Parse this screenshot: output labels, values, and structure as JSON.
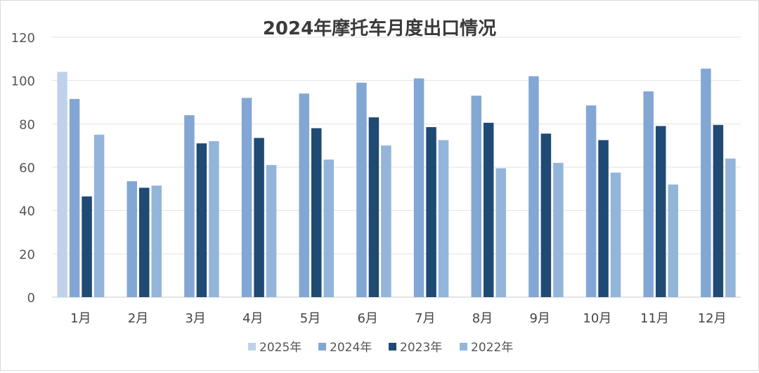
{
  "chart_data": {
    "type": "bar",
    "title": "2024年摩托车月度出口情况",
    "xlabel": "",
    "ylabel": "",
    "ylim": [
      0,
      120
    ],
    "yticks": [
      0,
      20,
      40,
      60,
      80,
      100,
      120
    ],
    "grid": true,
    "legend_position": "bottom",
    "categories": [
      "1月",
      "2月",
      "3月",
      "4月",
      "5月",
      "6月",
      "7月",
      "8月",
      "9月",
      "10月",
      "11月",
      "12月"
    ],
    "series": [
      {
        "name": "2025年",
        "color": "#c0d2ea",
        "values": [
          104,
          null,
          null,
          null,
          null,
          null,
          null,
          null,
          null,
          null,
          null,
          null
        ]
      },
      {
        "name": "2024年",
        "color": "#83a7d4",
        "values": [
          91.5,
          53.5,
          84,
          92,
          94,
          99,
          101,
          93,
          102,
          88.5,
          95,
          105.5
        ]
      },
      {
        "name": "2023年",
        "color": "#1f4a74",
        "values": [
          46.5,
          50.5,
          71,
          73.5,
          78,
          83,
          78.5,
          80.5,
          75.5,
          72.5,
          79,
          79.5
        ]
      },
      {
        "name": "2022年",
        "color": "#93b5da",
        "values": [
          75,
          51.5,
          72,
          61,
          63.5,
          70,
          72.5,
          59.5,
          62,
          57.5,
          52,
          64
        ]
      }
    ]
  }
}
